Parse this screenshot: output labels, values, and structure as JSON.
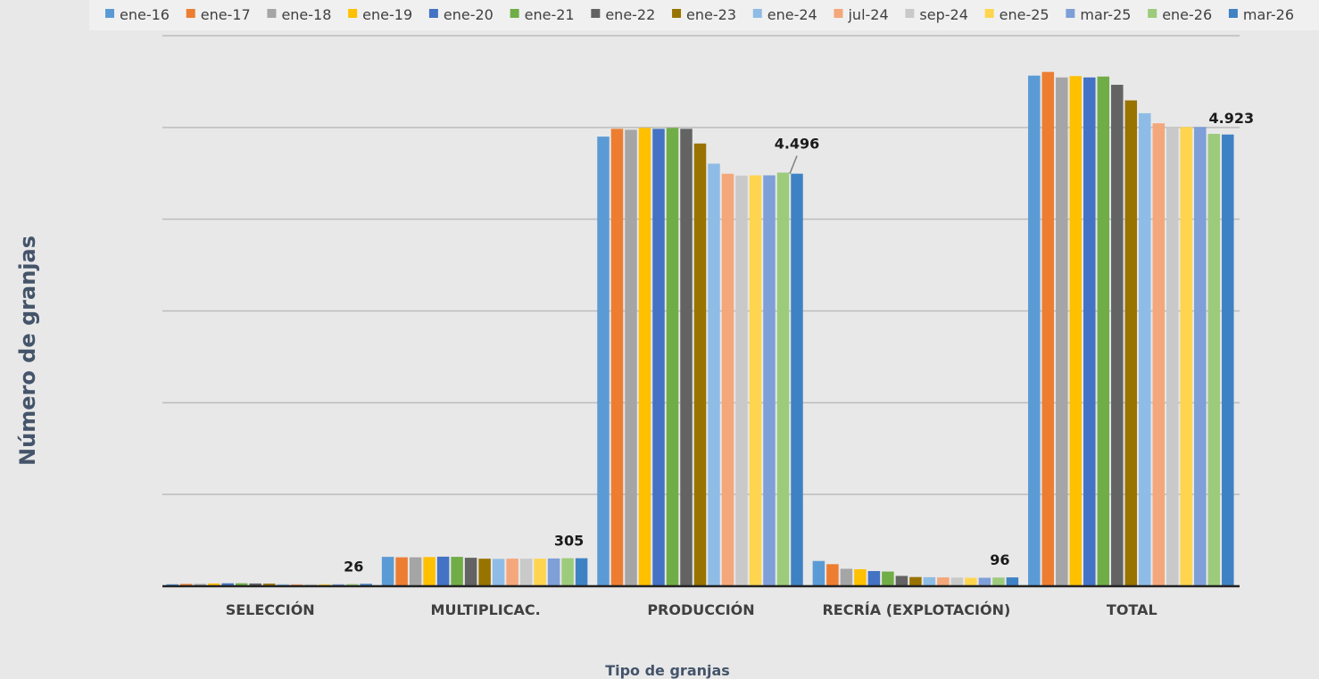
{
  "chart_data": {
    "type": "bar",
    "title": "",
    "xlabel": "Tipo de granjas",
    "ylabel": "Número de granjas",
    "categories": [
      "SELECCIÓN",
      "MULTIPLICAC.",
      "PRODUCCIÓN",
      "RECRÍA (EXPLOTACIÓN)",
      "TOTAL"
    ],
    "ylim": [
      0,
      6000
    ],
    "grid": true,
    "legend_position": "top",
    "series": [
      {
        "name": "ene-16",
        "color": "#5b9bd5",
        "values": [
          22,
          320,
          4900,
          275,
          5565
        ]
      },
      {
        "name": "ene-17",
        "color": "#ed7d31",
        "values": [
          25,
          315,
          4985,
          240,
          5605
        ]
      },
      {
        "name": "ene-18",
        "color": "#a5a5a5",
        "values": [
          25,
          315,
          4975,
          190,
          5545
        ]
      },
      {
        "name": "ene-19",
        "color": "#ffc000",
        "values": [
          30,
          318,
          4995,
          185,
          5560
        ]
      },
      {
        "name": "ene-20",
        "color": "#4472c4",
        "values": [
          32,
          322,
          4985,
          165,
          5545
        ]
      },
      {
        "name": "ene-21",
        "color": "#70ad47",
        "values": [
          32,
          320,
          4995,
          160,
          5555
        ]
      },
      {
        "name": "ene-22",
        "color": "#636363",
        "values": [
          30,
          310,
          4985,
          112,
          5465
        ]
      },
      {
        "name": "ene-23",
        "color": "#997300",
        "values": [
          28,
          300,
          4825,
          100,
          5295
        ]
      },
      {
        "name": "ene-24",
        "color": "#8fbce6",
        "values": [
          22,
          298,
          4605,
          98,
          5155
        ]
      },
      {
        "name": "jul-24",
        "color": "#f4a77a",
        "values": [
          22,
          300,
          4495,
          96,
          5045
        ]
      },
      {
        "name": "sep-24",
        "color": "#c9c9c9",
        "values": [
          22,
          300,
          4475,
          94,
          5005
        ]
      },
      {
        "name": "ene-25",
        "color": "#ffd54f",
        "values": [
          22,
          300,
          4478,
          92,
          5005
        ]
      },
      {
        "name": "mar-25",
        "color": "#7e9fd8",
        "values": [
          22,
          302,
          4478,
          92,
          5005
        ]
      },
      {
        "name": "ene-26",
        "color": "#9ccb7c",
        "values": [
          24,
          305,
          4508,
          94,
          4930
        ]
      },
      {
        "name": "mar-26",
        "color": "#3f82c4",
        "values": [
          26,
          305,
          4496,
          96,
          4923
        ]
      }
    ],
    "data_labels": [
      {
        "series": "mar-26",
        "category": "SELECCIÓN",
        "text": "26"
      },
      {
        "series": "mar-26",
        "category": "MULTIPLICAC.",
        "text": "305"
      },
      {
        "series": "mar-26",
        "category": "PRODUCCIÓN",
        "text": "4.496"
      },
      {
        "series": "mar-26",
        "category": "RECRÍA (EXPLOTACIÓN)",
        "text": "96"
      },
      {
        "series": "mar-26",
        "category": "TOTAL",
        "text": "4.923"
      }
    ]
  }
}
